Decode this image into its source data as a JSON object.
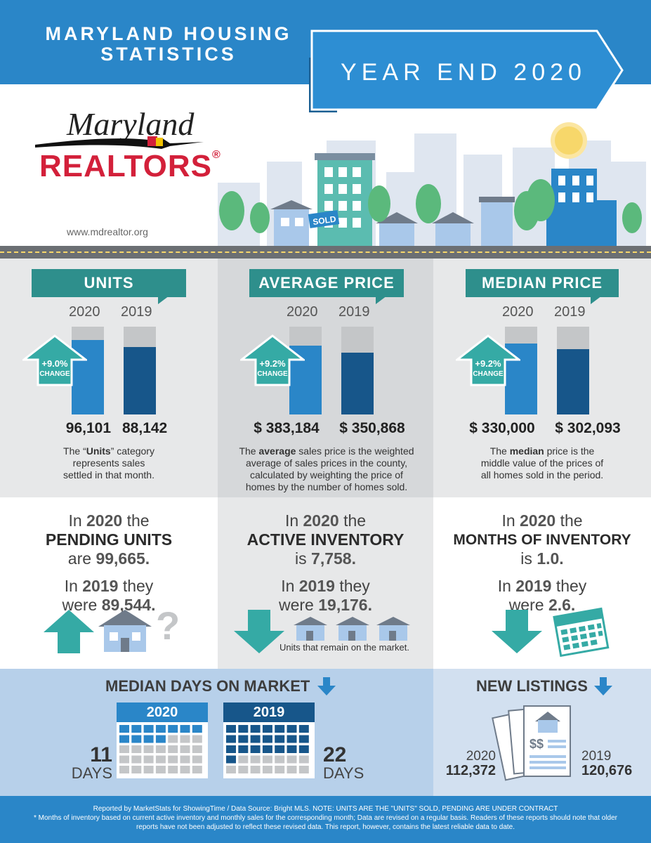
{
  "header": {
    "title_line1": "MARYLAND HOUSING",
    "title_line2": "STATISTICS",
    "period": "YEAR END 2020"
  },
  "logo": {
    "script": "Maryland",
    "main": "REALTORS",
    "registered": "®"
  },
  "website": "www.mdrealtor.org",
  "sold_sign": "SOLD",
  "colors": {
    "blue_primary": "#2a86c8",
    "teal": "#2e8f8c",
    "bar_2020": "#2a86c8",
    "bar_2019": "#17568a",
    "bar_cap": "#c4c6c8",
    "panel_gray": "#e7e8e9",
    "panel_gray_dark": "#d6d8da",
    "light_blue": "#b7d0ea"
  },
  "stats": [
    {
      "title": "UNITS",
      "years": [
        "2020",
        "2019"
      ],
      "values": [
        "96,101",
        "88,142"
      ],
      "fractions": [
        0.85,
        0.77
      ],
      "change_value": "+9.0%",
      "change_label": "CHANGE",
      "desc_lines": [
        "The “Units” category",
        "represents sales",
        "settled in that month."
      ]
    },
    {
      "title": "AVERAGE PRICE",
      "years": [
        "2020",
        "2019"
      ],
      "values": [
        "$ 383,184",
        "$ 350,868"
      ],
      "fractions": [
        0.78,
        0.7
      ],
      "change_value": "+9.2%",
      "change_label": "CHANGE",
      "desc_lines": [
        "The average sales price is the weighted",
        "average of sales prices in the county,",
        "calculated by weighting the price of",
        "homes by the number of homes sold."
      ]
    },
    {
      "title": "MEDIAN PRICE",
      "years": [
        "2020",
        "2019"
      ],
      "values": [
        "$ 330,000",
        "$ 302,093"
      ],
      "fractions": [
        0.81,
        0.74
      ],
      "change_value": "+9.2%",
      "change_label": "CHANGE",
      "desc_lines": [
        "The median price is the",
        "middle value of the prices of",
        "all homes sold in the period."
      ]
    }
  ],
  "middle": [
    {
      "line1_pre": "In",
      "line1_year": "2020",
      "line1_post": "the",
      "line2": "PENDING UNITS",
      "line3_pre": "are",
      "line3_val": "99,665.",
      "line4_pre": "In",
      "line4_year": "2019",
      "line4_post": "they",
      "line5_pre": "were",
      "line5_val": "89,544.",
      "direction": "up",
      "note": ""
    },
    {
      "line1_pre": "In",
      "line1_year": "2020",
      "line1_post": "the",
      "line2": "ACTIVE INVENTORY",
      "line3_pre": "is",
      "line3_val": "7,758.",
      "line4_pre": "In",
      "line4_year": "2019",
      "line4_post": "they",
      "line5_pre": "were",
      "line5_val": "19,176.",
      "direction": "down",
      "note": "Units that remain on the market."
    },
    {
      "line1_pre": "In",
      "line1_year": "2020",
      "line1_post": "the",
      "line2": "MONTHS OF INVENTORY",
      "line3_pre": "is",
      "line3_val": "1.0.",
      "line4_pre": "In",
      "line4_year": "2019",
      "line4_post": "they",
      "line5_pre": "were",
      "line5_val": "2.6.",
      "direction": "down",
      "note": ""
    }
  ],
  "days_on_market": {
    "title": "MEDIAN DAYS ON MARKET",
    "year_a": "2020",
    "value_a": "11",
    "unit_a": "DAYS",
    "year_b": "2019",
    "value_b": "22",
    "unit_b": "DAYS"
  },
  "new_listings": {
    "title": "NEW LISTINGS",
    "year_a": "2020",
    "value_a": "112,372",
    "year_b": "2019",
    "value_b": "120,676"
  },
  "footer": {
    "line1": "Reported by MarketStats for ShowingTime / Data Source: Bright MLS.   NOTE: UNITS ARE THE \"UNITS\" SOLD, PENDING ARE UNDER CONTRACT",
    "line2": "* Months of inventory based on current active inventory and monthly sales for the corresponding month;  Data are revised on a regular basis. Readers of these reports should note that older",
    "line3": "reports have not been adjusted to reflect these revised data. This report, however, contains the latest reliable data to date."
  }
}
